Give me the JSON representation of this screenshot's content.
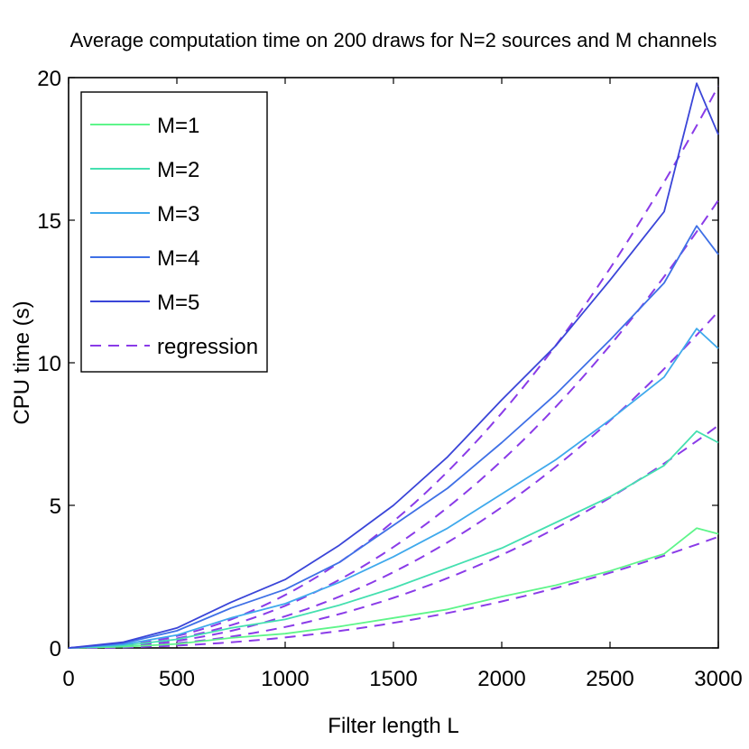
{
  "chart_data": {
    "type": "line",
    "title": "Average computation time on 200 draws for N=2 sources and M channels",
    "xlabel": "Filter length L",
    "ylabel": "CPU time (s)",
    "xlim": [
      0,
      3000
    ],
    "ylim": [
      0,
      20
    ],
    "xticks": [
      "0",
      "500",
      "1000",
      "1500",
      "2000",
      "2500",
      "3000"
    ],
    "yticks": [
      "0",
      "5",
      "10",
      "15",
      "20"
    ],
    "grid": false,
    "legend_position": "top-left",
    "x": [
      0,
      250,
      500,
      750,
      1000,
      1250,
      1500,
      1750,
      2000,
      2250,
      2500,
      2750,
      2900,
      3000
    ],
    "series": [
      {
        "name": "M=1",
        "color": "#5ef58a",
        "values": [
          0,
          0.04,
          0.14,
          0.35,
          0.5,
          0.75,
          1.05,
          1.35,
          1.8,
          2.2,
          2.7,
          3.3,
          4.2,
          4.0
        ]
      },
      {
        "name": "M=2",
        "color": "#45e0b0",
        "values": [
          0,
          0.08,
          0.3,
          0.7,
          1.0,
          1.5,
          2.1,
          2.8,
          3.5,
          4.4,
          5.3,
          6.4,
          7.6,
          7.2
        ]
      },
      {
        "name": "M=3",
        "color": "#3fa9ec",
        "values": [
          0,
          0.12,
          0.45,
          1.05,
          1.55,
          2.3,
          3.2,
          4.2,
          5.4,
          6.6,
          8.0,
          9.5,
          11.2,
          10.5
        ]
      },
      {
        "name": "M=4",
        "color": "#3f70e6",
        "values": [
          0,
          0.16,
          0.6,
          1.4,
          2.05,
          3.0,
          4.3,
          5.6,
          7.2,
          8.9,
          10.8,
          12.8,
          14.8,
          13.8
        ]
      },
      {
        "name": "M=5",
        "color": "#3a45d8",
        "values": [
          0,
          0.2,
          0.7,
          1.6,
          2.4,
          3.6,
          5.0,
          6.7,
          8.7,
          10.6,
          12.9,
          15.3,
          19.8,
          18.0
        ]
      }
    ],
    "regression": {
      "name": "regression",
      "color": "#8a3be8",
      "style": "dashed",
      "y_at_3000": [
        3.9,
        7.8,
        11.8,
        15.7,
        19.7
      ]
    }
  }
}
